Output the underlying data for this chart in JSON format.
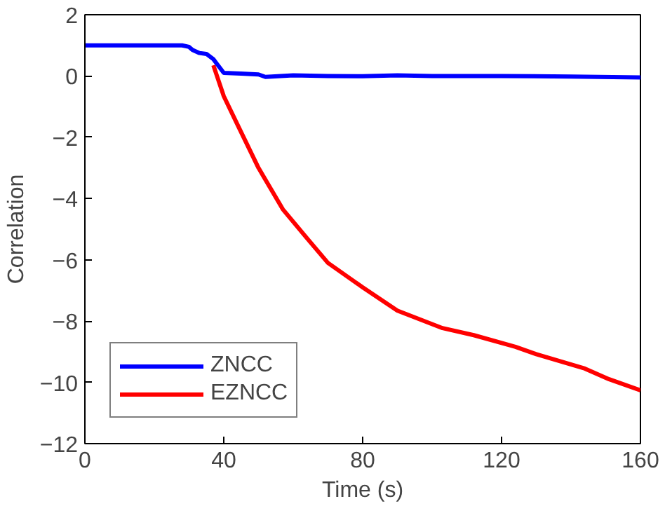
{
  "chart_data": {
    "type": "line",
    "xlabel": "Time (s)",
    "ylabel": "Correlation",
    "xlim": [
      0,
      160
    ],
    "xticks": [
      0,
      40,
      80,
      120,
      160
    ],
    "ylim": [
      -12,
      2
    ],
    "yticks": [
      -12,
      -10,
      -8,
      -6,
      -4,
      -2,
      0,
      2
    ],
    "grid": false,
    "legend": "bottom left",
    "line_style": "solid",
    "series": [
      {
        "name": "ZNCC",
        "color": "#0000ff",
        "x": [
          0,
          10,
          20,
          28,
          30,
          31,
          33,
          35,
          37,
          38,
          40,
          45,
          50,
          52,
          60,
          70,
          80,
          90,
          100,
          120,
          140,
          160
        ],
        "values": [
          1.0,
          1.0,
          1.0,
          1.0,
          0.95,
          0.85,
          0.75,
          0.72,
          0.55,
          0.4,
          0.1,
          0.08,
          0.05,
          -0.03,
          0.02,
          0.0,
          -0.01,
          0.02,
          0.0,
          0.0,
          -0.02,
          -0.05
        ]
      },
      {
        "name": "EZNCC",
        "color": "#ff0000",
        "x": [
          37,
          40,
          44,
          50,
          57,
          64,
          70,
          80,
          90,
          103,
          112,
          124,
          130,
          144,
          151,
          160
        ],
        "values": [
          0.35,
          -0.66,
          -1.6,
          -3.0,
          -4.35,
          -5.3,
          -6.1,
          -6.9,
          -7.66,
          -8.23,
          -8.46,
          -8.84,
          -9.08,
          -9.55,
          -9.9,
          -10.26
        ]
      }
    ]
  }
}
